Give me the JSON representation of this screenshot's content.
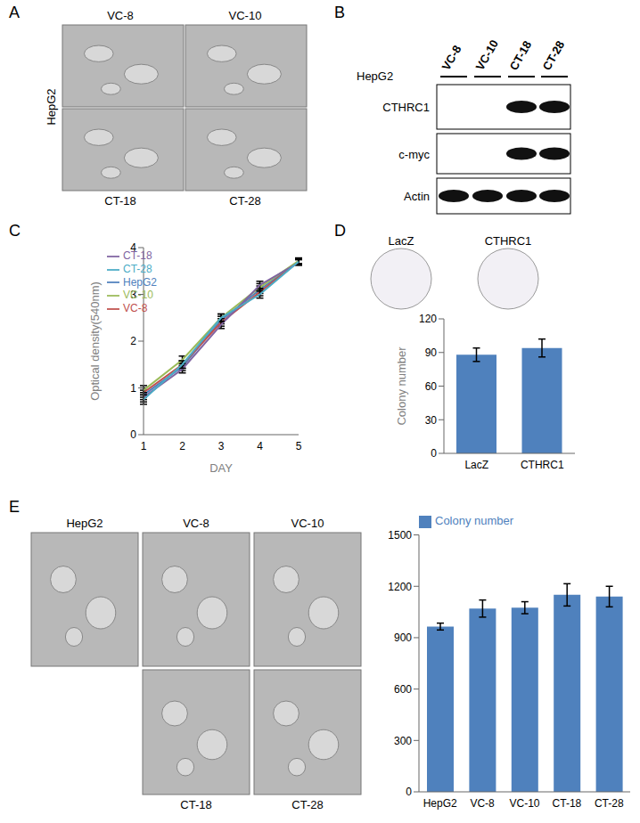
{
  "panels": {
    "A": {
      "label": "A",
      "cell_line": "HepG2",
      "images_top": [
        "VC-8",
        "VC-10"
      ],
      "images_bottom": [
        "CT-18",
        "CT-28"
      ]
    },
    "B": {
      "label": "B",
      "cell_line": "HepG2",
      "lanes": [
        "VC-8",
        "VC-10",
        "CT-18",
        "CT-28"
      ],
      "rows": [
        "CTHRC1",
        "c-myc",
        "Actin"
      ],
      "bands": [
        [
          0,
          0,
          1,
          1
        ],
        [
          0,
          0,
          1,
          1
        ],
        [
          1,
          1,
          1,
          1
        ]
      ]
    },
    "C": {
      "label": "C"
    },
    "D": {
      "label": "D",
      "images": [
        "LacZ",
        "CTHRC1"
      ]
    },
    "E": {
      "label": "E",
      "images_top": [
        "HepG2",
        "VC-8",
        "VC-10"
      ],
      "images_bottom": [
        "CT-18",
        "CT-28"
      ]
    }
  },
  "chart_data": [
    {
      "type": "line",
      "xlabel": "DAY",
      "ylabel": "Optical density(540nm)",
      "categories": [
        "1",
        "2",
        "3",
        "4",
        "5"
      ],
      "ylim": [
        0,
        4
      ],
      "yticks": [
        0,
        1,
        2,
        3,
        4
      ],
      "legend": "top-left",
      "series": [
        {
          "name": "HepG2",
          "color": "#4f81bd",
          "values": [
            0.85,
            1.45,
            2.45,
            3.1,
            3.7
          ],
          "errors": [
            0.1,
            0.08,
            0.08,
            0.08,
            0.06
          ]
        },
        {
          "name": "VC-8",
          "color": "#c0504d",
          "values": [
            0.9,
            1.5,
            2.4,
            3.05,
            3.7
          ],
          "errors": [
            0.1,
            0.08,
            0.08,
            0.08,
            0.06
          ]
        },
        {
          "name": "VC-10",
          "color": "#9bbb59",
          "values": [
            0.95,
            1.6,
            2.5,
            3.15,
            3.72
          ],
          "errors": [
            0.1,
            0.08,
            0.08,
            0.08,
            0.06
          ]
        },
        {
          "name": "CT-18",
          "color": "#8064a2",
          "values": [
            0.8,
            1.4,
            2.35,
            3.2,
            3.68
          ],
          "errors": [
            0.1,
            0.08,
            0.08,
            0.08,
            0.06
          ]
        },
        {
          "name": "CT-28",
          "color": "#4bacc6",
          "values": [
            0.75,
            1.5,
            2.5,
            3.0,
            3.7
          ],
          "errors": [
            0.1,
            0.08,
            0.08,
            0.08,
            0.06
          ]
        }
      ]
    },
    {
      "type": "bar",
      "ylabel": "Colony number",
      "categories": [
        "LacZ",
        "CTHRC1"
      ],
      "values": [
        88,
        94
      ],
      "errors": [
        6,
        8
      ],
      "color": "#4f81bd",
      "ylim": [
        0,
        120
      ],
      "yticks": [
        0,
        30,
        60,
        90,
        120
      ]
    },
    {
      "type": "bar",
      "categories": [
        "HepG2",
        "VC-8",
        "VC-10",
        "CT-18",
        "CT-28"
      ],
      "series": [
        {
          "name": "Colony number",
          "color": "#4f81bd",
          "values": [
            965,
            1070,
            1075,
            1150,
            1140
          ],
          "errors": [
            20,
            50,
            35,
            65,
            60
          ]
        }
      ],
      "legend": "top",
      "ylim": [
        0,
        1500
      ],
      "yticks": [
        0,
        300,
        600,
        900,
        1200,
        1500
      ]
    }
  ]
}
